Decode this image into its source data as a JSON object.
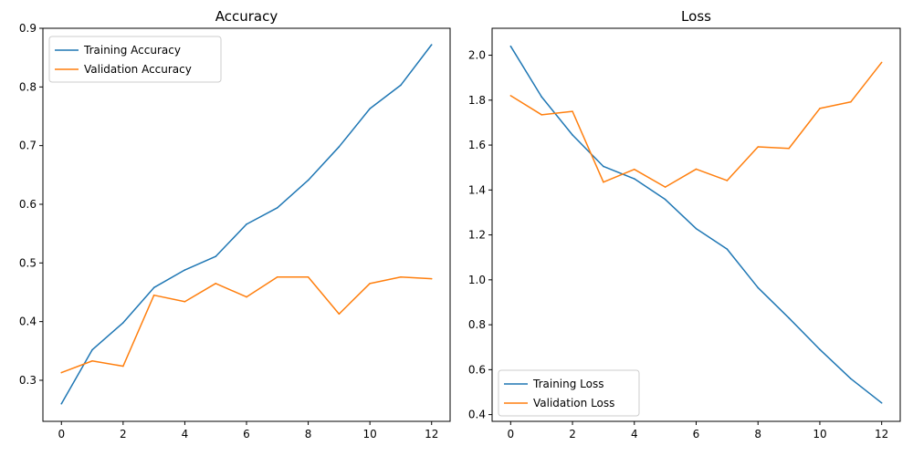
{
  "chart_data": [
    {
      "type": "line",
      "title": "Accuracy",
      "xlabel": "",
      "ylabel": "",
      "xlim": [
        -0.6,
        12.6
      ],
      "ylim": [
        0.23,
        0.9
      ],
      "xticks": [
        0,
        2,
        4,
        6,
        8,
        10,
        12
      ],
      "yticks": [
        0.3,
        0.4,
        0.5,
        0.6,
        0.7,
        0.8,
        0.9
      ],
      "legend_position": "upper-left",
      "grid": false,
      "x": [
        0,
        1,
        2,
        3,
        4,
        5,
        6,
        7,
        8,
        9,
        10,
        11,
        12
      ],
      "series": [
        {
          "name": "Training Accuracy",
          "color": "#1f77b4",
          "values": [
            0.26,
            0.352,
            0.398,
            0.458,
            0.488,
            0.511,
            0.566,
            0.594,
            0.641,
            0.698,
            0.763,
            0.803,
            0.872
          ]
        },
        {
          "name": "Validation Accuracy",
          "color": "#ff7f0e",
          "values": [
            0.313,
            0.333,
            0.324,
            0.445,
            0.434,
            0.465,
            0.442,
            0.476,
            0.476,
            0.413,
            0.465,
            0.476,
            0.473
          ]
        }
      ]
    },
    {
      "type": "line",
      "title": "Loss",
      "xlabel": "",
      "ylabel": "",
      "xlim": [
        -0.6,
        12.6
      ],
      "ylim": [
        0.37,
        2.12
      ],
      "xticks": [
        0,
        2,
        4,
        6,
        8,
        10,
        12
      ],
      "yticks": [
        0.4,
        0.6,
        0.8,
        1.0,
        1.2,
        1.4,
        1.6,
        1.8,
        2.0
      ],
      "legend_position": "lower-left",
      "grid": false,
      "x": [
        0,
        1,
        2,
        3,
        4,
        5,
        6,
        7,
        8,
        9,
        10,
        11,
        12
      ],
      "series": [
        {
          "name": "Training Loss",
          "color": "#1f77b4",
          "values": [
            2.04,
            1.815,
            1.645,
            1.505,
            1.45,
            1.358,
            1.228,
            1.137,
            0.965,
            0.83,
            0.69,
            0.56,
            0.452
          ]
        },
        {
          "name": "Validation Loss",
          "color": "#ff7f0e",
          "values": [
            1.82,
            1.735,
            1.75,
            1.435,
            1.492,
            1.413,
            1.493,
            1.442,
            1.592,
            1.585,
            1.763,
            1.792,
            1.968
          ]
        }
      ]
    }
  ]
}
